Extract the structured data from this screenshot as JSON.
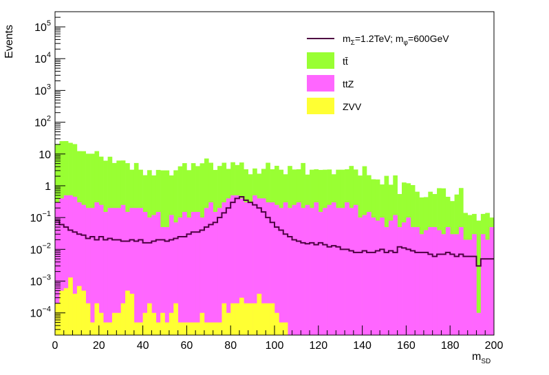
{
  "chart_data": {
    "type": "stacked-histogram-log",
    "title": "",
    "xlabel_main": "m",
    "xlabel_sub": "SD",
    "ylabel": "Events",
    "xlim": [
      0,
      200
    ],
    "ylim": [
      2e-05,
      300000
    ],
    "log_y": true,
    "grid": false,
    "legend_position": "top-right",
    "bin_width": 2,
    "x_ticks": [
      "0",
      "20",
      "40",
      "60",
      "80",
      "100",
      "120",
      "140",
      "160",
      "180",
      "200"
    ],
    "y_ticks": [
      {
        "base": "10",
        "exp": "−4",
        "value": 0.0001
      },
      {
        "base": "10",
        "exp": "−3",
        "value": 0.001
      },
      {
        "base": "10",
        "exp": "−2",
        "value": 0.01
      },
      {
        "base": "10",
        "exp": "−1",
        "value": 0.1
      },
      {
        "base": "1",
        "exp": "",
        "value": 1
      },
      {
        "base": "10",
        "exp": "",
        "value": 10
      },
      {
        "base": "10",
        "exp": "2",
        "value": 100
      },
      {
        "base": "10",
        "exp": "3",
        "value": 1000
      },
      {
        "base": "10",
        "exp": "4",
        "value": 10000
      },
      {
        "base": "10",
        "exp": "5",
        "value": 100000
      }
    ],
    "colors": {
      "ttbar": "#99ff33",
      "ttZ": "#ff66ff",
      "ZVV": "#ffff33",
      "signal": "#4d0041"
    },
    "series": [
      {
        "key": "ZVV",
        "name": "ZVV",
        "color": "#ffff33",
        "values": [
          0.0002,
          0.0005,
          0.0006,
          0.0013,
          0.0004,
          0.0007,
          0.0005,
          0.0002,
          5e-05,
          0.0002,
          0.0001,
          5e-05,
          5e-05,
          0.0001,
          0.0001,
          0.0002,
          0.0005,
          0.0004,
          5e-05,
          5e-05,
          0.0001,
          0.0002,
          0.0001,
          5e-05,
          0.0001,
          5e-05,
          0.0001,
          0.0002,
          5e-05,
          5e-05,
          5e-05,
          5e-05,
          5e-05,
          0.0001,
          5e-05,
          5e-05,
          5e-05,
          5e-05,
          0.0002,
          0.0001,
          0.0002,
          0.0002,
          0.0003,
          0.0002,
          0.0002,
          0.0002,
          0.0004,
          0.0002,
          0.0002,
          0.0002,
          0.0001,
          5e-05,
          5e-05,
          0,
          0,
          0,
          0,
          0,
          0,
          0,
          0,
          0,
          0,
          0,
          0,
          0,
          0,
          0,
          0,
          0,
          0,
          0,
          0,
          0,
          0,
          0,
          0,
          0,
          0,
          0,
          0,
          0,
          0,
          0,
          0,
          0,
          0,
          0,
          0,
          0,
          0,
          0,
          0,
          0,
          0,
          0,
          0,
          0,
          0,
          0
        ]
      },
      {
        "key": "ttZ",
        "name": "ttZ",
        "color": "#ff66ff",
        "values": [
          0.3,
          0.4,
          0.5,
          0.5,
          0.45,
          0.3,
          0.25,
          0.2,
          0.2,
          0.3,
          0.25,
          0.15,
          0.2,
          0.2,
          0.2,
          0.25,
          0.15,
          0.2,
          0.2,
          0.2,
          0.15,
          0.1,
          0.12,
          0.15,
          0.05,
          0.05,
          0.12,
          0.07,
          0.1,
          0.15,
          0.1,
          0.15,
          0.15,
          0.1,
          0.2,
          0.3,
          0.15,
          0.2,
          0.3,
          0.4,
          0.5,
          0.5,
          0.4,
          0.3,
          0.3,
          0.5,
          0.4,
          0.4,
          0.3,
          0.3,
          0.25,
          0.2,
          0.3,
          0.2,
          0.25,
          0.3,
          0.2,
          0.25,
          0.2,
          0.3,
          0.15,
          0.2,
          0.25,
          0.3,
          0.2,
          0.2,
          0.3,
          0.2,
          0.25,
          0.1,
          0.12,
          0.15,
          0.1,
          0.08,
          0.1,
          0.05,
          0.08,
          0.12,
          0.05,
          0.07,
          0.1,
          0.05,
          0.05,
          0.03,
          0.04,
          0.05,
          0.05,
          0.04,
          0.03,
          0.05,
          0.03,
          0.03,
          0.05,
          0.02,
          0.02,
          0.03,
          0.0001,
          0.03,
          0.02,
          0.05
        ]
      },
      {
        "key": "ttbar",
        "name": "tt̄",
        "color": "#99ff33",
        "values": [
          20,
          25,
          25,
          22,
          20,
          12,
          12,
          10,
          10,
          12,
          8,
          6,
          8,
          5,
          6,
          6,
          5,
          3,
          5,
          3,
          2,
          3,
          2,
          3,
          3,
          3,
          2,
          3,
          4,
          5,
          3,
          5,
          4,
          5,
          7,
          5,
          3,
          4,
          5,
          3,
          5,
          4,
          5,
          3,
          2,
          3,
          2,
          3,
          5,
          3,
          4,
          3,
          2,
          4,
          3,
          3,
          5,
          2,
          3,
          3,
          3,
          3,
          3,
          2,
          3,
          3,
          3,
          4,
          3,
          2,
          4,
          2,
          1.5,
          1.5,
          1,
          2,
          1,
          2,
          0.5,
          1.2,
          1.1,
          1.0,
          0.6,
          0.4,
          0.4,
          0.6,
          0.5,
          0.8,
          0.8,
          0.4,
          0.3,
          0.5,
          0.8,
          0.12,
          0.1,
          0.1,
          0.08,
          0.1,
          0.12,
          0.05
        ]
      }
    ],
    "signal": {
      "name_parts": {
        "m": "m",
        "sub1": "Σ",
        "mid": "=1.2TeV; m",
        "sub2": "φ",
        "end": "=600GeV"
      },
      "color": "#4d0041",
      "values": [
        0.08,
        0.06,
        0.05,
        0.04,
        0.035,
        0.03,
        0.028,
        0.022,
        0.025,
        0.02,
        0.025,
        0.02,
        0.022,
        0.02,
        0.02,
        0.018,
        0.018,
        0.02,
        0.018,
        0.02,
        0.016,
        0.016,
        0.018,
        0.02,
        0.02,
        0.018,
        0.02,
        0.022,
        0.025,
        0.025,
        0.03,
        0.035,
        0.035,
        0.04,
        0.05,
        0.06,
        0.07,
        0.1,
        0.14,
        0.2,
        0.3,
        0.4,
        0.45,
        0.35,
        0.3,
        0.25,
        0.2,
        0.15,
        0.1,
        0.07,
        0.05,
        0.04,
        0.03,
        0.025,
        0.02,
        0.018,
        0.016,
        0.015,
        0.016,
        0.014,
        0.016,
        0.014,
        0.012,
        0.013,
        0.012,
        0.01,
        0.01,
        0.009,
        0.008,
        0.008,
        0.009,
        0.008,
        0.008,
        0.009,
        0.01,
        0.008,
        0.009,
        0.008,
        0.012,
        0.011,
        0.01,
        0.009,
        0.008,
        0.008,
        0.008,
        0.007,
        0.006,
        0.007,
        0.007,
        0.008,
        0.007,
        0.006,
        0.007,
        0.006,
        0.006,
        0.006,
        0.003,
        0.005,
        0.005,
        0.005
      ]
    }
  }
}
